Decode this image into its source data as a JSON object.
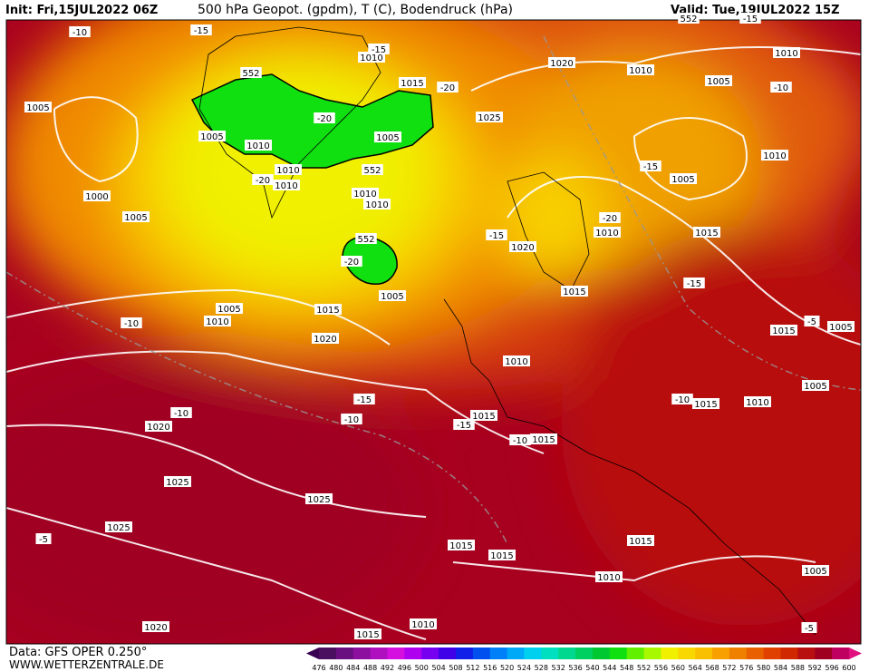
{
  "header": {
    "init": "Init: Fri,15JUL2022 06Z",
    "title": "500 hPa Geopot. (gpdm), T (C), Bodendruck (hPa)",
    "valid": "Valid: Tue,19JUL2022 15Z"
  },
  "footer": {
    "data": "Data: GFS OPER 0.250°",
    "site": "WWW.WETTERZENTRALE.DE"
  },
  "map_labels": [
    "1010",
    "1015",
    "1020",
    "1010",
    "1010",
    "1005",
    "-10",
    "1005",
    "-15",
    "-10",
    "-15",
    "552",
    "-20",
    "1025",
    "-20",
    "1005",
    "1010",
    "1005",
    "1010",
    "-15",
    "1005",
    "1010",
    "552",
    "-20",
    "1010",
    "1010",
    "1010",
    "1000",
    "1005",
    "-20",
    "1010",
    "1015",
    "-15",
    "1020",
    "552",
    "-20",
    "1015",
    "-15",
    "1005",
    "1005",
    "1015",
    "1010",
    "-10",
    "1015",
    "1005",
    "-5",
    "1020",
    "1010",
    "1005",
    "-15",
    "1015",
    "1010",
    "-10",
    "1015",
    "-15",
    "-10",
    "-10",
    "1020",
    "-10",
    "1015",
    "1025",
    "1025",
    "1025",
    "-5",
    "1015",
    "1015",
    "1015",
    "1010",
    "1005",
    "1020",
    "1010",
    "1015",
    "-5",
    "552",
    "-15"
  ],
  "legend": {
    "levels": [
      476,
      480,
      484,
      488,
      492,
      496,
      500,
      504,
      508,
      512,
      516,
      520,
      524,
      528,
      532,
      536,
      540,
      544,
      548,
      552,
      556,
      560,
      564,
      568,
      572,
      576,
      580,
      584,
      588,
      592,
      596,
      600
    ],
    "colors": [
      "#4b0f5f",
      "#6a0f7f",
      "#8d0fa0",
      "#b00fc0",
      "#d40fe0",
      "#b000f0",
      "#7800f0",
      "#4000e8",
      "#1020e8",
      "#0050f0",
      "#0080f8",
      "#00a8f8",
      "#00d0f0",
      "#00e0c0",
      "#00d890",
      "#00d060",
      "#00c830",
      "#10e010",
      "#60f000",
      "#a8f800",
      "#f0f000",
      "#f8d800",
      "#f8c000",
      "#f8a000",
      "#f08000",
      "#e86000",
      "#e04000",
      "#d02800",
      "#b81010",
      "#a00020",
      "#c00060"
    ]
  }
}
